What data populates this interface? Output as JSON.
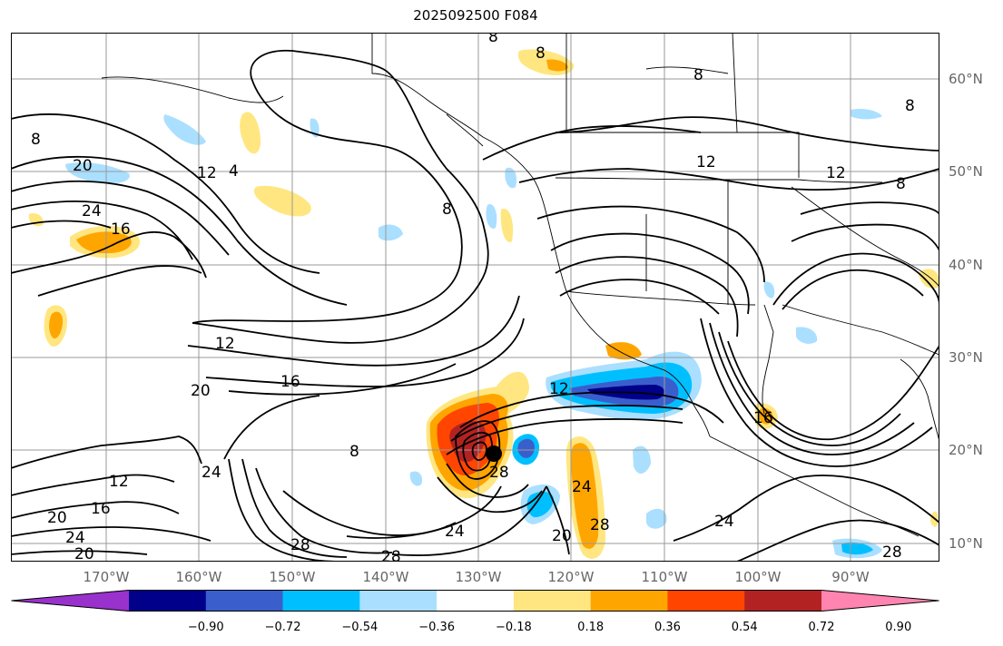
{
  "map": {
    "title": "2025092500 F084",
    "lat_labels": [
      "60°N",
      "50°N",
      "40°N",
      "30°N",
      "20°N",
      "10°N"
    ],
    "lon_labels": [
      "170°W",
      "160°W",
      "150°W",
      "140°W",
      "130°W",
      "120°W",
      "110°W",
      "100°W",
      "90°W"
    ],
    "contour_labels": [
      "8",
      "8",
      "8",
      "8",
      "8",
      "8",
      "20",
      "24",
      "16",
      "12",
      "4",
      "12",
      "12",
      "8",
      "12",
      "16",
      "20",
      "24",
      "8",
      "12",
      "28",
      "24",
      "24",
      "20",
      "28",
      "28",
      "12",
      "16",
      "20",
      "24",
      "20",
      "28",
      "24",
      "28",
      "16"
    ],
    "storm_marker": "tropical-cyclone-center",
    "shading_colors": {
      "positive_weak": "#fde68a",
      "positive_mid": "#ffa500",
      "positive_strong": "#ff4500",
      "positive_very": "#b22222",
      "negative_weak": "#a8dcf7",
      "negative_mid": "#00bfff",
      "negative_strong": "#3a5fcd",
      "negative_very": "#00008b"
    }
  },
  "colorbar": {
    "ticks": [
      "−0.90",
      "−0.72",
      "−0.54",
      "−0.36",
      "−0.18",
      "0.18",
      "0.36",
      "0.54",
      "0.72",
      "0.90"
    ],
    "colors": [
      "#9932cc",
      "#00008b",
      "#3a5fcd",
      "#00bfff",
      "#aadfff",
      "#ffffff",
      "#ffe680",
      "#ffa500",
      "#ff4500",
      "#b22222",
      "#ff85b0"
    ]
  }
}
